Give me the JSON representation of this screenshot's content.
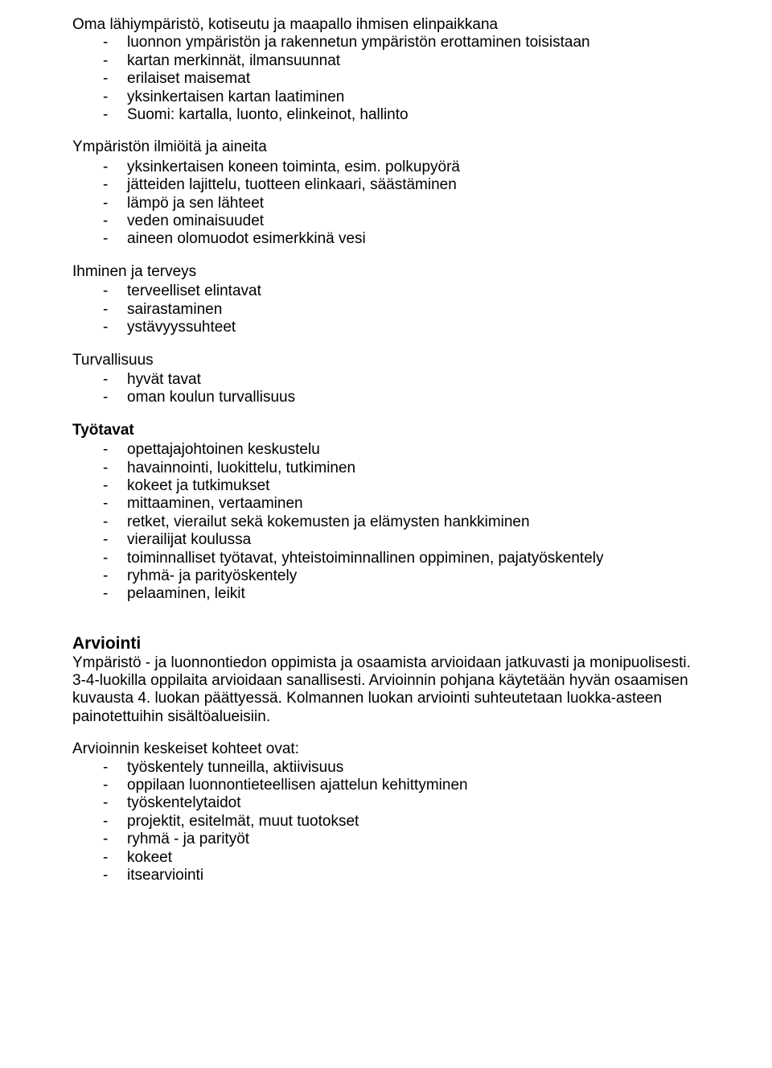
{
  "colors": {
    "text": "#000000",
    "background": "#ffffff"
  },
  "typography": {
    "body_font_family": "Arial, Helvetica, sans-serif",
    "body_font_size_pt": 14,
    "heading_font_size_pt": 16,
    "bold_weight": 700
  },
  "s1": {
    "title": "Oma lähiympäristö, kotiseutu ja maapallo ihmisen elinpaikkana",
    "items": [
      "luonnon ympäristön ja rakennetun ympäristön erottaminen toisistaan",
      "kartan merkinnät, ilmansuunnat",
      "erilaiset maisemat",
      "yksinkertaisen kartan laatiminen",
      "Suomi: kartalla, luonto, elinkeinot, hallinto"
    ]
  },
  "s2": {
    "title": "Ympäristön ilmiöitä ja aineita",
    "items": [
      "yksinkertaisen koneen toiminta, esim. polkupyörä",
      "jätteiden lajittelu, tuotteen elinkaari, säästäminen",
      "lämpö ja sen lähteet",
      "veden ominaisuudet",
      "aineen olomuodot esimerkkinä vesi"
    ]
  },
  "s3": {
    "title": "Ihminen ja terveys",
    "items": [
      "terveelliset elintavat",
      "sairastaminen",
      "ystävyyssuhteet"
    ]
  },
  "s4": {
    "title": "Turvallisuus",
    "items": [
      "hyvät tavat",
      "oman koulun turvallisuus"
    ]
  },
  "s5": {
    "title": "Työtavat",
    "items": [
      "opettajajohtoinen keskustelu",
      "havainnointi, luokittelu, tutkiminen",
      "kokeet ja tutkimukset",
      "mittaaminen, vertaaminen",
      "retket, vierailut sekä kokemusten ja elämysten hankkiminen",
      "vierailijat koulussa",
      "toiminnalliset työtavat, yhteistoiminnallinen oppiminen, pajatyöskentely",
      "ryhmä- ja parityöskentely",
      "pelaaminen, leikit"
    ]
  },
  "arviointi": {
    "heading": "Arviointi",
    "paragraph": "Ympäristö - ja luonnontiedon oppimista ja osaamista arvioidaan jatkuvasti ja monipuolisesti. 3-4-luokilla oppilaita arvioidaan sanallisesti. Arvioinnin pohjana käytetään hyvän osaamisen kuvausta 4. luokan päättyessä. Kolmannen luokan arviointi suhteutetaan luokka-asteen painotettuihin sisältöalueisiin.",
    "list_intro": "Arvioinnin keskeiset kohteet ovat:",
    "items": [
      "työskentely tunneilla, aktiivisuus",
      "oppilaan luonnontieteellisen ajattelun kehittyminen",
      "työskentelytaidot",
      "projektit, esitelmät, muut tuotokset",
      "ryhmä - ja parityöt",
      "kokeet",
      "itsearviointi"
    ]
  }
}
